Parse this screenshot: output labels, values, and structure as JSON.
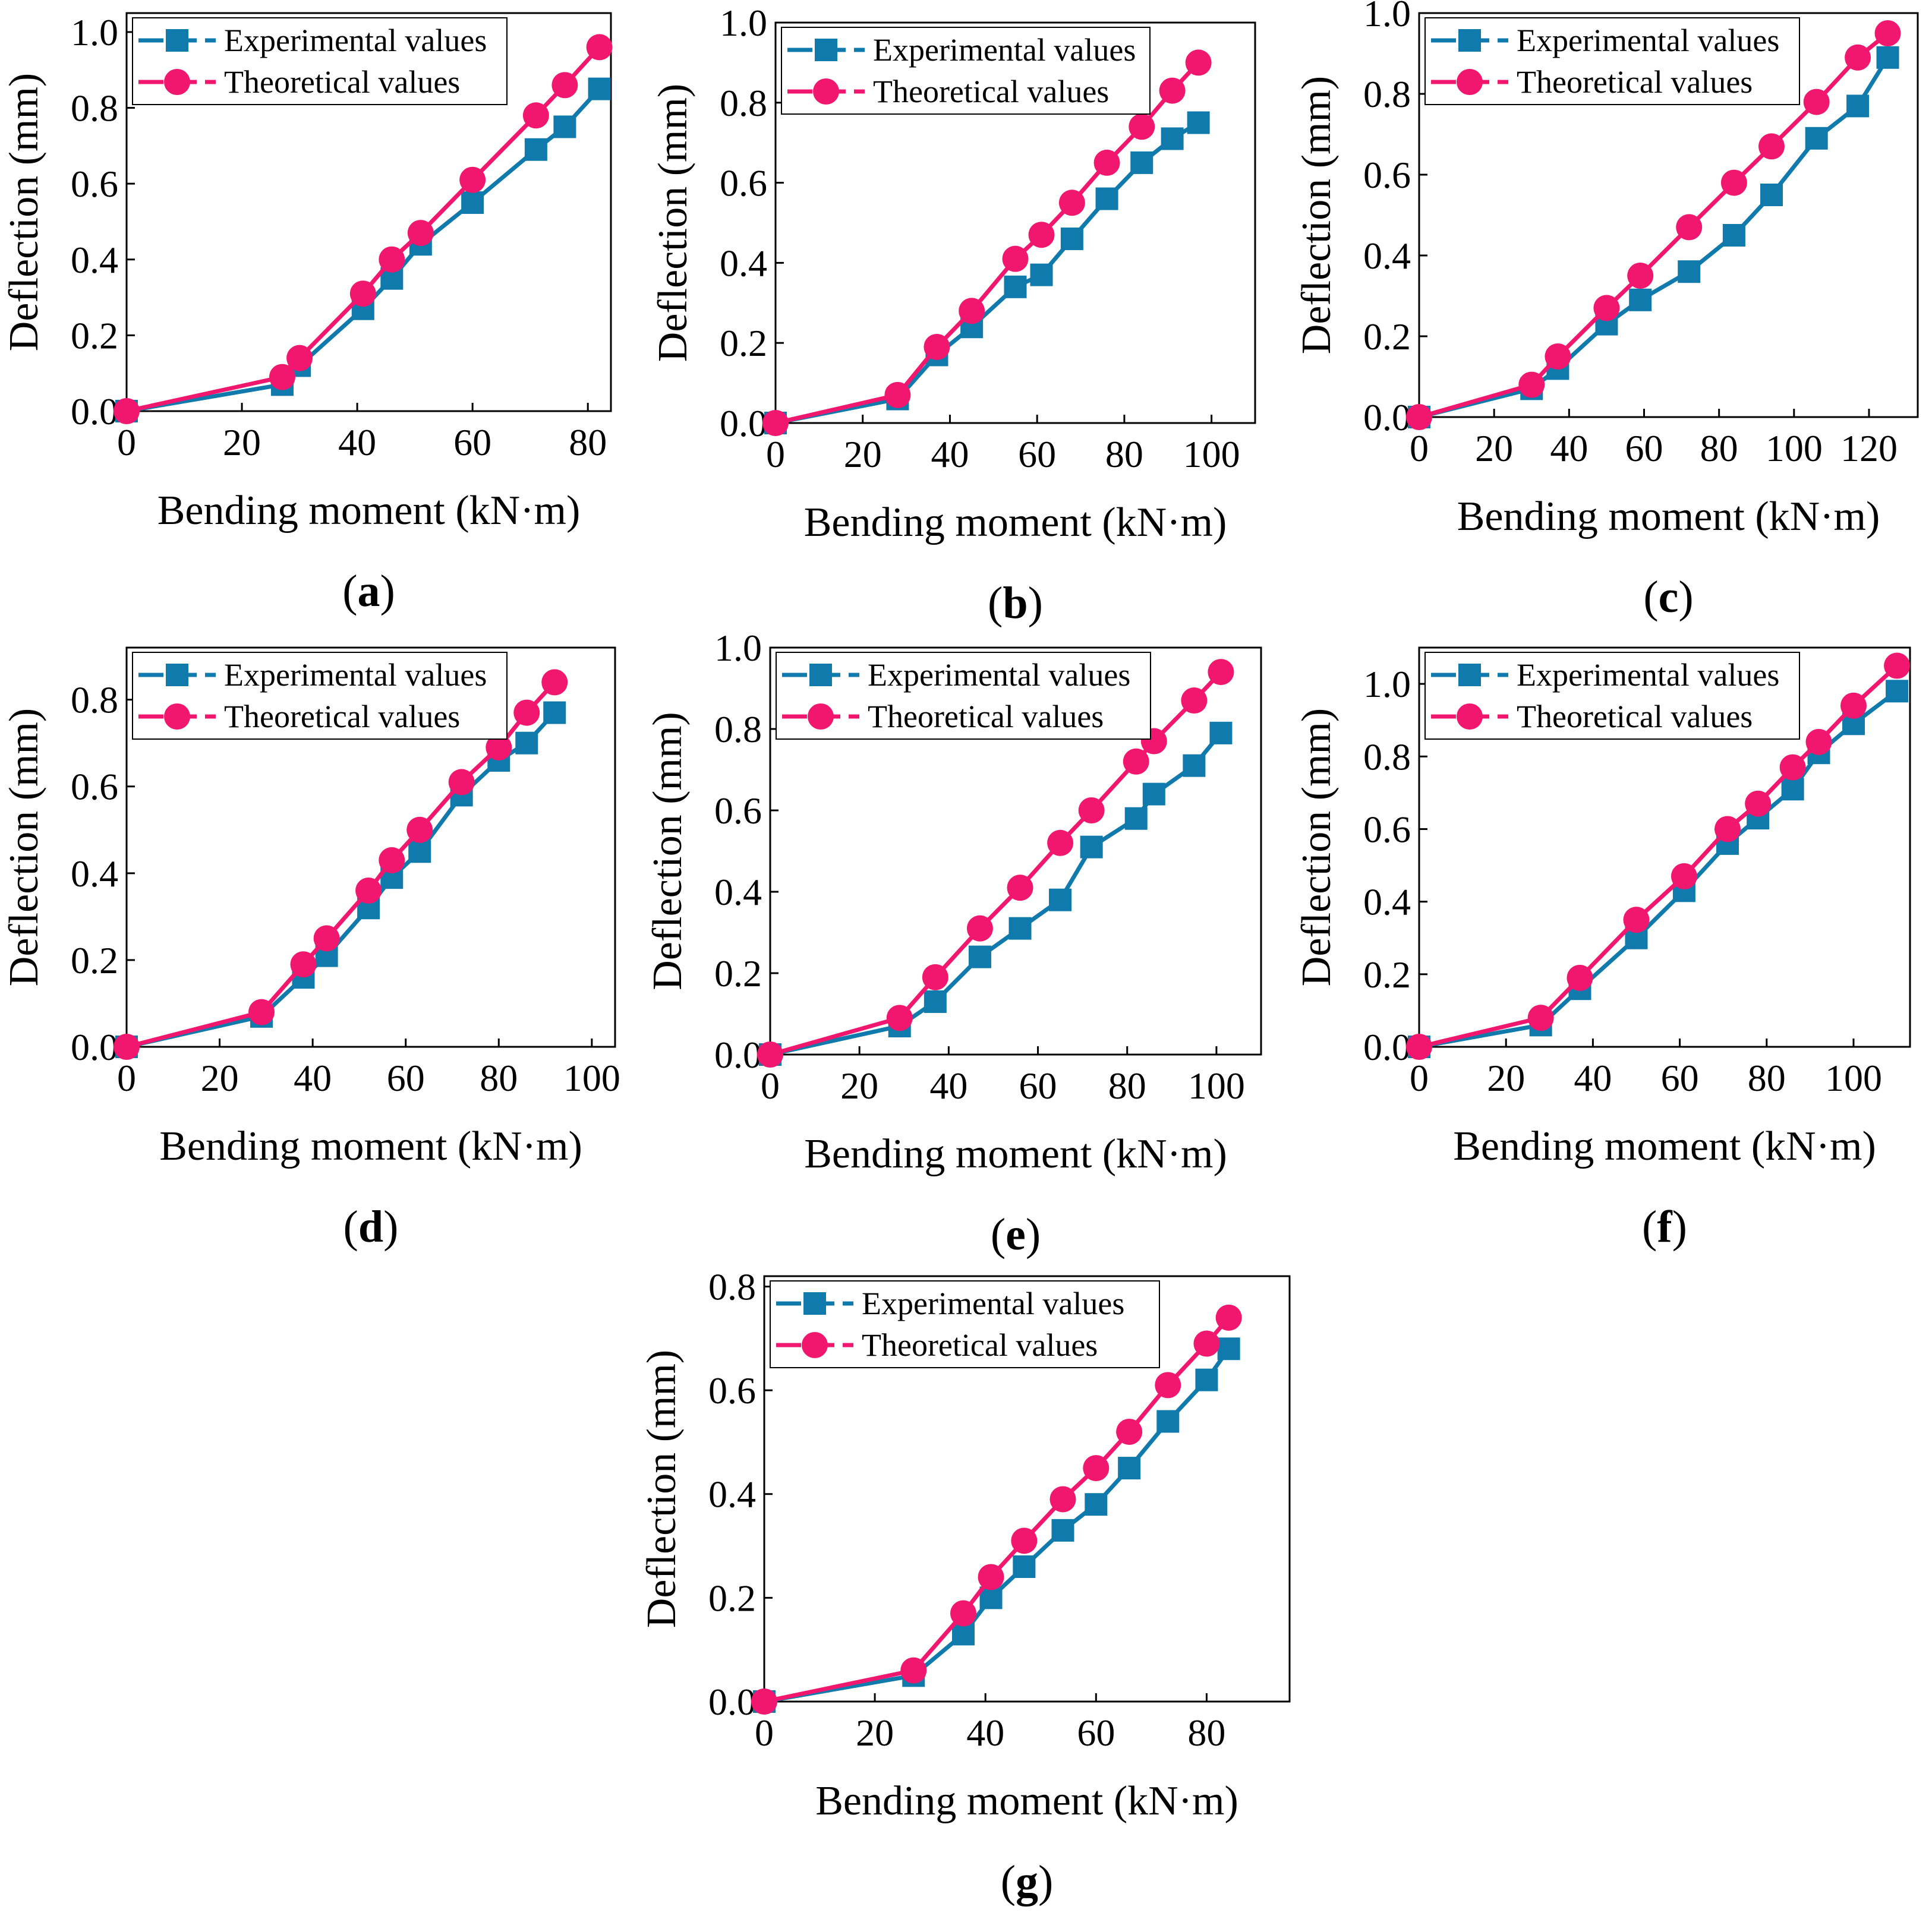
{
  "colors": {
    "experimental": "#0f7aab",
    "theoretical": "#f2176e",
    "axis": "#000000",
    "background": "#ffffff"
  },
  "chart_data": [
    {
      "id": "a",
      "type": "line",
      "panel_label": "a",
      "xlabel": "Bending moment (kN·m)",
      "ylabel": "Deflection (mm)",
      "xlim": [
        0,
        84
      ],
      "ylim": [
        0,
        1.05
      ],
      "xticks": [
        0,
        20,
        40,
        60,
        80
      ],
      "xtick_labels": [
        "0",
        "20",
        "40",
        "60",
        "80"
      ],
      "yticks": [
        0,
        0.2,
        0.4,
        0.6,
        0.8,
        1.0
      ],
      "ytick_labels": [
        "0.0",
        "0.2",
        "0.4",
        "0.6",
        "0.8",
        "1.0"
      ],
      "legend": {
        "position": "top-left",
        "entries": [
          "Experimental values",
          "Theoretical values"
        ]
      },
      "series": [
        {
          "name": "Experimental values",
          "marker": "square",
          "color": "#0f7aab",
          "x": [
            0,
            27,
            30,
            41,
            46,
            51,
            60,
            71,
            76,
            82
          ],
          "y": [
            0,
            0.07,
            0.12,
            0.27,
            0.35,
            0.44,
            0.55,
            0.69,
            0.75,
            0.85
          ]
        },
        {
          "name": "Theoretical values",
          "marker": "circle",
          "color": "#f2176e",
          "x": [
            0,
            27,
            30,
            41,
            46,
            51,
            60,
            71,
            76,
            82
          ],
          "y": [
            0,
            0.09,
            0.14,
            0.31,
            0.4,
            0.47,
            0.61,
            0.78,
            0.86,
            0.96
          ]
        }
      ]
    },
    {
      "id": "b",
      "type": "line",
      "panel_label": "b",
      "xlabel": "Bending moment (kN·m)",
      "ylabel": "Deflection (mm)",
      "xlim": [
        0,
        110
      ],
      "ylim": [
        0,
        1.0
      ],
      "xticks": [
        0,
        20,
        40,
        60,
        80,
        100
      ],
      "xtick_labels": [
        "0",
        "20",
        "40",
        "60",
        "80",
        "100"
      ],
      "yticks": [
        0,
        0.2,
        0.4,
        0.6,
        0.8,
        1.0
      ],
      "ytick_labels": [
        "0.0",
        "0.2",
        "0.4",
        "0.6",
        "0.8",
        "1.0"
      ],
      "legend": {
        "position": "top-left",
        "entries": [
          "Experimental values",
          "Theoretical values"
        ]
      },
      "series": [
        {
          "name": "Experimental values",
          "marker": "square",
          "color": "#0f7aab",
          "x": [
            0,
            28,
            37,
            45,
            55,
            61,
            68,
            76,
            84,
            91,
            97
          ],
          "y": [
            0,
            0.06,
            0.17,
            0.24,
            0.34,
            0.37,
            0.46,
            0.56,
            0.65,
            0.71,
            0.75
          ]
        },
        {
          "name": "Theoretical values",
          "marker": "circle",
          "color": "#f2176e",
          "x": [
            0,
            28,
            37,
            45,
            55,
            61,
            68,
            76,
            84,
            91,
            97
          ],
          "y": [
            0,
            0.07,
            0.19,
            0.28,
            0.41,
            0.47,
            0.55,
            0.65,
            0.74,
            0.83,
            0.9
          ]
        }
      ]
    },
    {
      "id": "c",
      "type": "line",
      "panel_label": "c",
      "xlabel": "Bending moment (kN·m)",
      "ylabel": "Deflection (mm)",
      "xlim": [
        0,
        133
      ],
      "ylim": [
        0,
        1.0
      ],
      "xticks": [
        0,
        20,
        40,
        60,
        80,
        100,
        120
      ],
      "xtick_labels": [
        "0",
        "20",
        "40",
        "60",
        "80",
        "100",
        "120"
      ],
      "yticks": [
        0,
        0.2,
        0.4,
        0.6,
        0.8,
        1.0
      ],
      "ytick_labels": [
        "0.0",
        "0.2",
        "0.4",
        "0.6",
        "0.8",
        "1.0"
      ],
      "legend": {
        "position": "top-left",
        "entries": [
          "Experimental values",
          "Theoretical values"
        ]
      },
      "series": [
        {
          "name": "Experimental values",
          "marker": "square",
          "color": "#0f7aab",
          "x": [
            0,
            30,
            37,
            50,
            59,
            72,
            84,
            94,
            106,
            117,
            125
          ],
          "y": [
            0,
            0.07,
            0.12,
            0.23,
            0.29,
            0.36,
            0.45,
            0.55,
            0.69,
            0.77,
            0.89
          ]
        },
        {
          "name": "Theoretical values",
          "marker": "circle",
          "color": "#f2176e",
          "x": [
            0,
            30,
            37,
            50,
            59,
            72,
            84,
            94,
            106,
            117,
            125
          ],
          "y": [
            0,
            0.08,
            0.15,
            0.27,
            0.35,
            0.47,
            0.58,
            0.67,
            0.78,
            0.89,
            0.95
          ]
        }
      ]
    },
    {
      "id": "d",
      "type": "line",
      "panel_label": "d",
      "xlabel": "Bending moment (kN·m)",
      "ylabel": "Deflection (mm)",
      "xlim": [
        0,
        105
      ],
      "ylim": [
        0,
        0.92
      ],
      "xticks": [
        0,
        20,
        40,
        60,
        80,
        100
      ],
      "xtick_labels": [
        "0",
        "20",
        "40",
        "60",
        "80",
        "100"
      ],
      "yticks": [
        0,
        0.2,
        0.4,
        0.6,
        0.8
      ],
      "ytick_labels": [
        "0.0",
        "0.2",
        "0.4",
        "0.6",
        "0.8"
      ],
      "legend": {
        "position": "top-left",
        "entries": [
          "Experimental values",
          "Theoretical values"
        ]
      },
      "series": [
        {
          "name": "Experimental values",
          "marker": "square",
          "color": "#0f7aab",
          "x": [
            0,
            29,
            38,
            43,
            52,
            57,
            63,
            72,
            80,
            86,
            92
          ],
          "y": [
            0,
            0.07,
            0.16,
            0.21,
            0.32,
            0.39,
            0.45,
            0.58,
            0.66,
            0.7,
            0.77
          ]
        },
        {
          "name": "Theoretical values",
          "marker": "circle",
          "color": "#f2176e",
          "x": [
            0,
            29,
            38,
            43,
            52,
            57,
            63,
            72,
            80,
            86,
            92
          ],
          "y": [
            0,
            0.08,
            0.19,
            0.25,
            0.36,
            0.43,
            0.5,
            0.61,
            0.69,
            0.77,
            0.84
          ]
        }
      ]
    },
    {
      "id": "e",
      "type": "line",
      "panel_label": "e",
      "xlabel": "Bending moment (kN·m)",
      "ylabel": "Deflection (mm)",
      "xlim": [
        0,
        110
      ],
      "ylim": [
        0,
        1.0
      ],
      "xticks": [
        0,
        20,
        40,
        60,
        80,
        100
      ],
      "xtick_labels": [
        "0",
        "20",
        "40",
        "60",
        "80",
        "100"
      ],
      "yticks": [
        0,
        0.2,
        0.4,
        0.6,
        0.8,
        1.0
      ],
      "ytick_labels": [
        "0.0",
        "0.2",
        "0.4",
        "0.6",
        "0.8",
        "1.0"
      ],
      "legend": {
        "position": "top-left",
        "entries": [
          "Experimental values",
          "Theoretical values"
        ]
      },
      "series": [
        {
          "name": "Experimental values",
          "marker": "square",
          "color": "#0f7aab",
          "x": [
            0,
            29,
            37,
            47,
            56,
            65,
            72,
            82,
            86,
            95,
            101
          ],
          "y": [
            0,
            0.07,
            0.13,
            0.24,
            0.31,
            0.38,
            0.51,
            0.58,
            0.64,
            0.71,
            0.79
          ]
        },
        {
          "name": "Theoretical values",
          "marker": "circle",
          "color": "#f2176e",
          "x": [
            0,
            29,
            37,
            47,
            56,
            65,
            72,
            82,
            86,
            95,
            101
          ],
          "y": [
            0,
            0.09,
            0.19,
            0.31,
            0.41,
            0.52,
            0.6,
            0.72,
            0.77,
            0.87,
            0.94
          ]
        }
      ]
    },
    {
      "id": "f",
      "type": "line",
      "panel_label": "f",
      "xlabel": "Bending moment (kN·m)",
      "ylabel": "Deflection (mm)",
      "xlim": [
        0,
        113
      ],
      "ylim": [
        0,
        1.1
      ],
      "xticks": [
        0,
        20,
        40,
        60,
        80,
        100
      ],
      "xtick_labels": [
        "0",
        "20",
        "40",
        "60",
        "80",
        "100"
      ],
      "yticks": [
        0,
        0.2,
        0.4,
        0.6,
        0.8,
        1.0
      ],
      "ytick_labels": [
        "0.0",
        "0.2",
        "0.4",
        "0.6",
        "0.8",
        "1.0"
      ],
      "legend": {
        "position": "top-left",
        "entries": [
          "Experimental values",
          "Theoretical values"
        ]
      },
      "series": [
        {
          "name": "Experimental values",
          "marker": "square",
          "color": "#0f7aab",
          "x": [
            0,
            28,
            37,
            50,
            61,
            71,
            78,
            86,
            92,
            100,
            110
          ],
          "y": [
            0,
            0.06,
            0.16,
            0.3,
            0.43,
            0.56,
            0.63,
            0.71,
            0.81,
            0.89,
            0.98
          ]
        },
        {
          "name": "Theoretical values",
          "marker": "circle",
          "color": "#f2176e",
          "x": [
            0,
            28,
            37,
            50,
            61,
            71,
            78,
            86,
            92,
            100,
            110
          ],
          "y": [
            0,
            0.08,
            0.19,
            0.35,
            0.47,
            0.6,
            0.67,
            0.77,
            0.84,
            0.94,
            1.05
          ]
        }
      ]
    },
    {
      "id": "g",
      "type": "line",
      "panel_label": "g",
      "xlabel": "Bending moment (kN·m)",
      "ylabel": "Deflection (mm)",
      "xlim": [
        0,
        95
      ],
      "ylim": [
        0,
        0.82
      ],
      "xticks": [
        0,
        20,
        40,
        60,
        80
      ],
      "xtick_labels": [
        "0",
        "20",
        "40",
        "60",
        "80"
      ],
      "yticks": [
        0,
        0.2,
        0.4,
        0.6,
        0.8
      ],
      "ytick_labels": [
        "0.0",
        "0.2",
        "0.4",
        "0.6",
        "0.8"
      ],
      "legend": {
        "position": "top-left",
        "entries": [
          "Experimental values",
          "Theoretical values"
        ]
      },
      "series": [
        {
          "name": "Experimental values",
          "marker": "square",
          "color": "#0f7aab",
          "x": [
            0,
            27,
            36,
            41,
            47,
            54,
            60,
            66,
            73,
            80,
            84
          ],
          "y": [
            0,
            0.05,
            0.13,
            0.2,
            0.26,
            0.33,
            0.38,
            0.45,
            0.54,
            0.62,
            0.68
          ]
        },
        {
          "name": "Theoretical values",
          "marker": "circle",
          "color": "#f2176e",
          "x": [
            0,
            27,
            36,
            41,
            47,
            54,
            60,
            66,
            73,
            80,
            84
          ],
          "y": [
            0,
            0.06,
            0.17,
            0.24,
            0.31,
            0.39,
            0.45,
            0.52,
            0.61,
            0.69,
            0.74
          ]
        }
      ]
    }
  ]
}
